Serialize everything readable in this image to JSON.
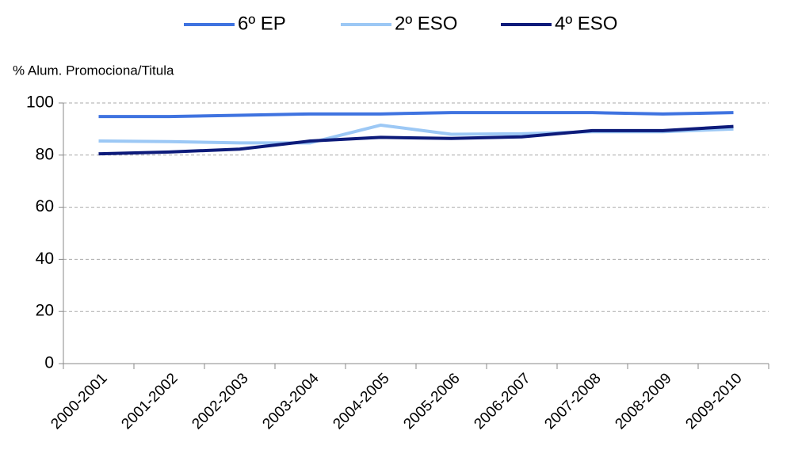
{
  "chart_data": {
    "type": "line",
    "y_label": "% Alum. Promociona/Titula",
    "categories": [
      "2000-2001",
      "2001-2002",
      "2002-2003",
      "2003-2004",
      "2004-2005",
      "2005-2006",
      "2006-2007",
      "2007-2008",
      "2008-2009",
      "2009-2010"
    ],
    "series": [
      {
        "name": "6º EP",
        "color": "#3f73e0",
        "values": [
          94.8,
          94.8,
          95.3,
          95.8,
          95.8,
          96.3,
          96.3,
          96.3,
          95.8,
          96.3
        ]
      },
      {
        "name": "2º ESO",
        "color": "#9cc8f5",
        "values": [
          85.4,
          85.2,
          84.7,
          84.7,
          91.5,
          88.0,
          88.2,
          89.0,
          89.0,
          90.0
        ]
      },
      {
        "name": "4º ESO",
        "color": "#0d1b7a",
        "values": [
          80.5,
          81.2,
          82.3,
          85.4,
          86.8,
          86.4,
          87.0,
          89.4,
          89.4,
          91.0
        ]
      }
    ],
    "ylim": [
      0,
      100
    ],
    "yticks": [
      0,
      20,
      40,
      60,
      80,
      100
    ],
    "grid": true,
    "legend": "top"
  }
}
